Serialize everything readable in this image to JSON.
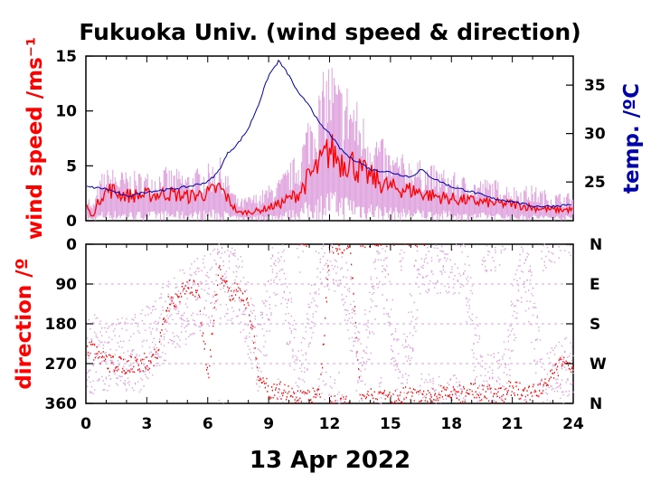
{
  "chart_data": [
    {
      "type": "line",
      "title": "Fukuoka Univ. (wind speed & direction)",
      "xlabel": "13 Apr 2022",
      "ylabel": "wind speed /ms⁻¹",
      "y2label": "temp. /ºC",
      "xlim": [
        0,
        24
      ],
      "ylim": [
        0,
        15
      ],
      "y2lim": [
        21,
        38
      ],
      "x_ticks": [
        "0",
        "3",
        "6",
        "9",
        "12",
        "15",
        "18",
        "21",
        "24"
      ],
      "y_ticks": [
        "0",
        "5",
        "10",
        "15"
      ],
      "y2_ticks": [
        "25",
        "30",
        "35"
      ],
      "colors": {
        "gust": "#dda0dd",
        "mean": "#ff0000",
        "temp": "#0000aa"
      },
      "series": [
        {
          "role": "gust",
          "x": [
            0,
            0.3,
            0.8,
            1.2,
            2,
            3,
            4,
            5,
            6,
            6.6,
            7.5,
            8.5,
            9.5,
            10.5,
            11,
            11.5,
            12,
            12.5,
            13,
            13.5,
            14,
            15,
            16,
            17,
            18,
            19,
            20,
            21,
            22,
            23,
            24
          ],
          "values": [
            2.5,
            1,
            3.5,
            3.8,
            3.5,
            3.5,
            3.8,
            3.5,
            4,
            4.5,
            1.5,
            2,
            3,
            5,
            8,
            9.5,
            12,
            10,
            10,
            8,
            7,
            5,
            4.5,
            4,
            3.5,
            3,
            3,
            2.5,
            2.5,
            2,
            2
          ]
        },
        {
          "role": "mean",
          "x": [
            0,
            0.3,
            0.8,
            1.2,
            2,
            3,
            4,
            5,
            6,
            6.6,
            7.5,
            8.5,
            9.5,
            10.5,
            11,
            11.5,
            12,
            12.5,
            13,
            13.5,
            14,
            15,
            16,
            17,
            18,
            19,
            20,
            21,
            22,
            23,
            24
          ],
          "values": [
            1.5,
            0.3,
            2.5,
            2.8,
            2.3,
            2.3,
            2.5,
            2.2,
            2.5,
            3,
            0.7,
            0.9,
            1.5,
            2.5,
            4,
            5,
            6.5,
            5.5,
            5.5,
            4.5,
            4,
            3,
            2.8,
            2.3,
            2,
            1.8,
            1.6,
            1.5,
            1.2,
            1,
            1
          ]
        },
        {
          "name": "temp",
          "axis": "right",
          "x": [
            0,
            1,
            2,
            3,
            4,
            5,
            6,
            6.5,
            7,
            7.5,
            8,
            8.5,
            9,
            9.5,
            10,
            10.5,
            11,
            11.5,
            12,
            12.5,
            13,
            13.5,
            14,
            15,
            16,
            16.5,
            17,
            18,
            19,
            20,
            21,
            22,
            23,
            24
          ],
          "values": [
            24.5,
            24.3,
            23.5,
            24,
            24.2,
            24.5,
            25,
            26,
            28,
            29,
            30.5,
            33,
            36,
            37.5,
            36,
            34,
            33,
            31,
            30,
            28.5,
            27.5,
            27,
            26.3,
            26,
            25.5,
            26.3,
            25.5,
            24.5,
            24,
            23.3,
            23,
            22.5,
            22.5,
            22.7
          ]
        }
      ]
    },
    {
      "type": "scatter",
      "xlabel": "13 Apr 2022",
      "ylabel": "direction /º",
      "xlim": [
        0,
        24
      ],
      "ylim": [
        360,
        0
      ],
      "x_ticks": [
        "0",
        "3",
        "6",
        "9",
        "12",
        "15",
        "18",
        "21",
        "24"
      ],
      "y_ticks": [
        "0",
        "90",
        "180",
        "270",
        "360"
      ],
      "y2_ticks": [
        "N",
        "E",
        "S",
        "W",
        "N"
      ],
      "series": [
        {
          "role": "instantaneous",
          "x": [
            0.5,
            1.5,
            2.5,
            3.5,
            4.5,
            5.5,
            6.5,
            7.5,
            8.5,
            9.5,
            10.5,
            11.5,
            12.5,
            13.5,
            14.5,
            15.5,
            16.5,
            17.5,
            18.5,
            19.5,
            20.5,
            21.5,
            22.5,
            23.5
          ],
          "values": [
            250,
            240,
            250,
            200,
            150,
            120,
            80,
            100,
            250,
            20,
            340,
            10,
            20,
            300,
            20,
            340,
            20,
            30,
            20,
            340,
            330,
            20,
            340,
            300
          ]
        },
        {
          "role": "mean",
          "x": [
            0,
            0.5,
            1,
            1.5,
            2,
            2.5,
            3,
            3.5,
            4,
            4.5,
            5,
            5.5,
            6,
            6.5,
            7,
            7.5,
            8,
            8.5,
            9,
            9.5,
            10,
            10.5,
            11,
            11.5,
            12,
            12.5,
            13,
            13.5,
            14,
            14.5,
            15,
            15.5,
            16,
            16.5,
            17,
            17.5,
            18,
            18.5,
            19,
            19.5,
            20,
            20.5,
            21,
            21.5,
            22,
            22.5,
            23,
            23.5,
            24
          ],
          "values": [
            230,
            250,
            270,
            270,
            275,
            270,
            265,
            250,
            140,
            120,
            90,
            110,
            300,
            60,
            110,
            100,
            140,
            300,
            330,
            330,
            340,
            345,
            345,
            345,
            0,
            5,
            0,
            355,
            345,
            350,
            345,
            340,
            345,
            350,
            345,
            340,
            335,
            340,
            330,
            335,
            340,
            345,
            320,
            340,
            330,
            320,
            300,
            260,
            300
          ]
        }
      ]
    }
  ]
}
